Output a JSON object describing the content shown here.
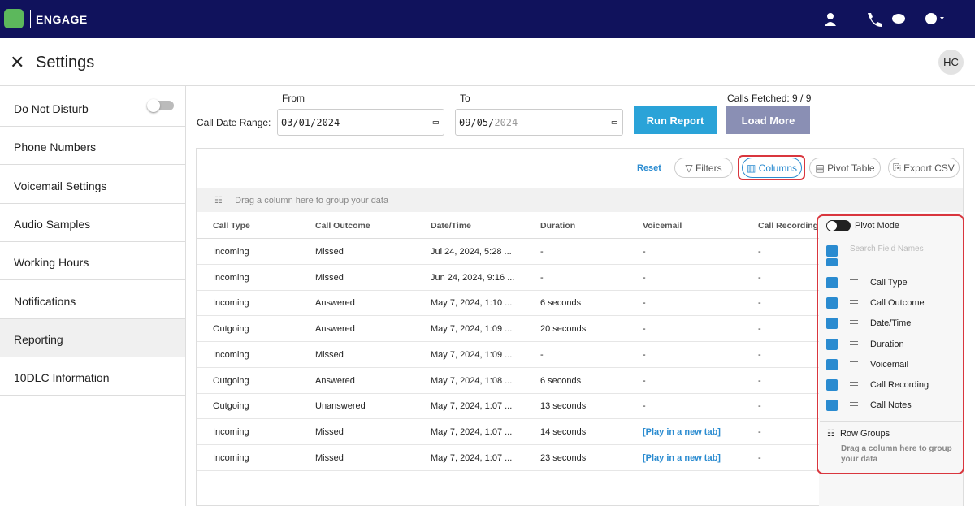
{
  "header": {
    "brand": "ENGAGE"
  },
  "page": {
    "title": "Settings",
    "avatar": "HC"
  },
  "sidebar": [
    "Do Not Disturb",
    "Phone Numbers",
    "Voicemail Settings",
    "Audio Samples",
    "Working Hours",
    "Notifications",
    "Reporting",
    "10DLC Information"
  ],
  "filters": {
    "from_label": "From",
    "to_label": "To",
    "range_label": "Call Date Range:",
    "from": "03/01/2024",
    "to_prefix": "09/05/",
    "to_year": "2024",
    "run": "Run Report",
    "load": "Load More",
    "fetched": "Calls Fetched: 9 / 9"
  },
  "toolbar": {
    "reset": "Reset",
    "filters": "Filters",
    "columns": "Columns",
    "pivot": "Pivot Table",
    "export": "Export CSV"
  },
  "group_hint": "Drag a column here to group your data",
  "table": {
    "columns": [
      "Call Type",
      "Call Outcome",
      "Date/Time",
      "Duration",
      "Voicemail",
      "Call Recording"
    ],
    "rows": [
      [
        "Incoming",
        "Missed",
        "Jul 24, 2024, 5:28 ...",
        "-",
        "-",
        "-"
      ],
      [
        "Incoming",
        "Missed",
        "Jun 24, 2024, 9:16 ...",
        "-",
        "-",
        "-"
      ],
      [
        "Incoming",
        "Answered",
        "May 7, 2024, 1:10 ...",
        "6 seconds",
        "-",
        "-"
      ],
      [
        "Outgoing",
        "Answered",
        "May 7, 2024, 1:09 ...",
        "20 seconds",
        "-",
        "-"
      ],
      [
        "Incoming",
        "Missed",
        "May 7, 2024, 1:09 ...",
        "-",
        "-",
        "-"
      ],
      [
        "Outgoing",
        "Answered",
        "May 7, 2024, 1:08 ...",
        "6 seconds",
        "-",
        "-"
      ],
      [
        "Outgoing",
        "Unanswered",
        "May 7, 2024, 1:07 ...",
        "13 seconds",
        "-",
        "-"
      ],
      [
        "Incoming",
        "Missed",
        "May 7, 2024, 1:07 ...",
        "14 seconds",
        "[Play in a new tab]",
        "-"
      ],
      [
        "Incoming",
        "Missed",
        "May 7, 2024, 1:07 ...",
        "23 seconds",
        "[Play in a new tab]",
        "-"
      ]
    ]
  },
  "panel": {
    "pivot_mode": "Pivot Mode",
    "search": "Search Field Names",
    "fields": [
      "Call Type",
      "Call Outcome",
      "Date/Time",
      "Duration",
      "Voicemail",
      "Call Recording",
      "Call Notes"
    ],
    "row_groups": "Row Groups",
    "row_groups_hint": "Drag a column here to group your data"
  }
}
